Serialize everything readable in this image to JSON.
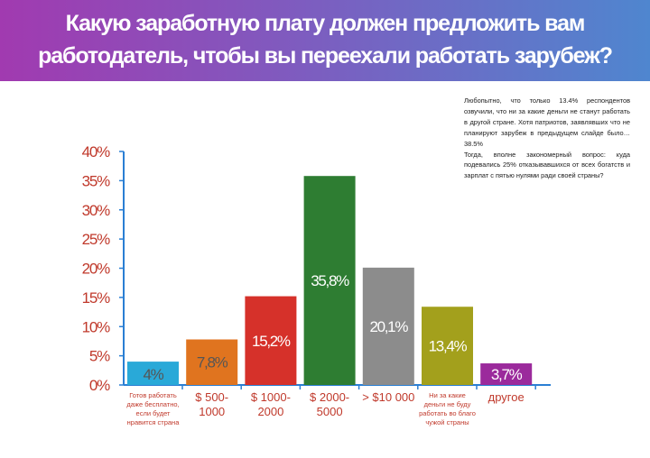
{
  "header": {
    "title_line1": "Какую заработную плату должен предложить вам",
    "title_line2": "работодатель, чтобы вы переехали работать  зарубеж?"
  },
  "comment": {
    "paragraph1": "Любопытно, что только 13.4% респондентов озвучили, что ни за какие деньги не станут работать в другой стране. Хотя патриотов, заявлявших что не планируют зарубеж в предыдущем слайде было…38.5%",
    "paragraph2": "Тогда, вполне закономерный вопрос: куда подевались 25% отказывавшихся от всех богатств и зарплат с пятью нулями ради своей страны?"
  },
  "colors": {
    "header_gradient": [
      "#a13ab0",
      "#4f86cf"
    ],
    "axis": "#2a7fd4",
    "tick_text": "#c0392b"
  },
  "chart_data": {
    "type": "bar",
    "ylim": [
      0,
      40
    ],
    "yticks": [
      0,
      5,
      10,
      15,
      20,
      25,
      30,
      35,
      40
    ],
    "ytick_labels": [
      "0%",
      "5%",
      "10%",
      "15%",
      "20%",
      "25%",
      "30%",
      "35%",
      "40%"
    ],
    "grid": false,
    "categories": [
      [
        "Готов работать",
        "даже бесплатно,",
        "если будет",
        "нравится страна"
      ],
      [
        "$ 500-",
        "1000"
      ],
      [
        "$ 1000-",
        "2000"
      ],
      [
        "$ 2000-",
        "5000"
      ],
      [
        "> $10 000"
      ],
      [
        "Ни за какие",
        "деньги не буду",
        "работать во благо",
        "чужой страны"
      ],
      [
        "другое"
      ]
    ],
    "category_size": [
      "small",
      "big",
      "big",
      "big",
      "big",
      "small",
      "big"
    ],
    "values": [
      4,
      7.8,
      15.2,
      35.8,
      20.1,
      13.4,
      3.7
    ],
    "value_labels": [
      "4%",
      "7,8%",
      "15,2%",
      "35,8%",
      "20,1%",
      "13,4%",
      "3,7%"
    ],
    "bar_colors": [
      "#29a9d8",
      "#e0741f",
      "#d6312a",
      "#2e7d32",
      "#8c8c8c",
      "#a3a01c",
      "#9b2a9c"
    ],
    "label_colors": [
      "#555555",
      "#555555",
      "#ffffff",
      "#ffffff",
      "#ffffff",
      "#ffffff",
      "#ffffff"
    ]
  }
}
